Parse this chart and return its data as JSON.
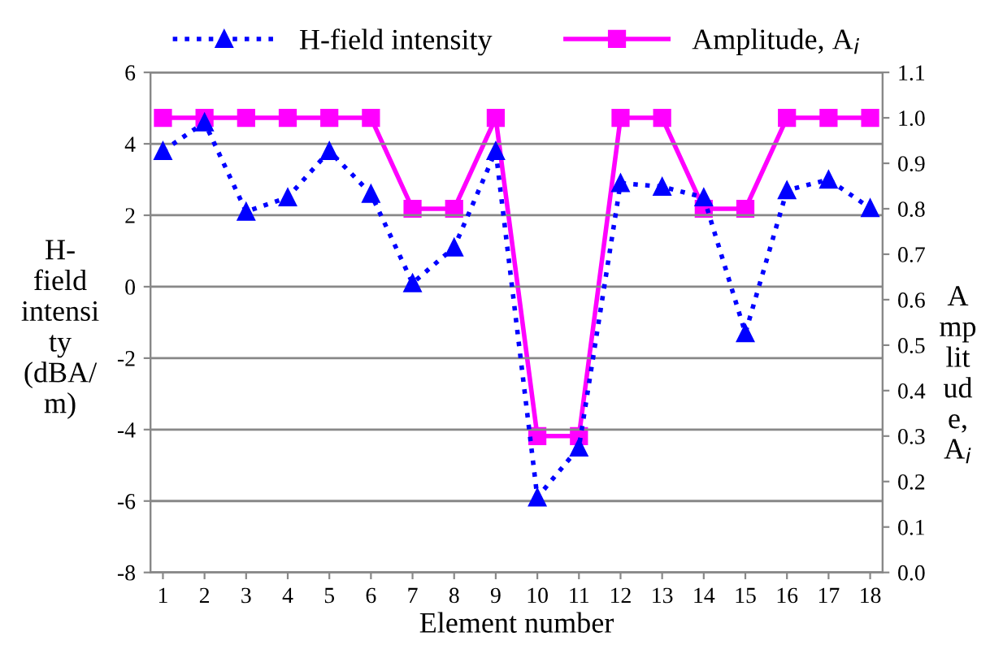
{
  "chart_data": {
    "type": "line",
    "xlabel": "Element number",
    "ylabel": "H-\nfield\nintensi\nty\n(dBA/\nm)",
    "y2label": "A\nmp\nlit\nud\ne,\nA$_{i}$",
    "categories": [
      "1",
      "2",
      "3",
      "4",
      "5",
      "6",
      "7",
      "8",
      "9",
      "10",
      "11",
      "12",
      "13",
      "14",
      "15",
      "16",
      "17",
      "18"
    ],
    "series": [
      {
        "name": "H-field intensity",
        "color": "#0000ff",
        "marker": "triangle",
        "line_style": "dotted",
        "values": [
          3.8,
          4.6,
          2.1,
          2.5,
          3.8,
          2.6,
          0.1,
          1.1,
          3.8,
          -5.9,
          -4.5,
          2.9,
          2.8,
          2.5,
          -1.3,
          2.7,
          3.0,
          2.2
        ]
      },
      {
        "name": "Amplitude, A$_{i}$",
        "color": "#ff00ff",
        "marker": "square",
        "line_style": "solid",
        "axis": "y2",
        "values": [
          1.0,
          1.0,
          1.0,
          1.0,
          1.0,
          1.0,
          0.8,
          0.8,
          1.0,
          0.3,
          0.3,
          1.0,
          1.0,
          0.8,
          0.8,
          1.0,
          1.0,
          1.0
        ]
      }
    ],
    "ylim": [
      -8,
      6
    ],
    "yticks": [
      -8,
      -6,
      -4,
      -2,
      0,
      2,
      4,
      6
    ],
    "y2lim": [
      0.0,
      1.1
    ],
    "y2ticks": [
      {
        "value": 0.0,
        "label": "0.0"
      },
      {
        "value": 0.1,
        "label": "0.1"
      },
      {
        "value": 0.2,
        "label": "0.2"
      },
      {
        "value": 0.3,
        "label": "0.3"
      },
      {
        "value": 0.4,
        "label": "0.4"
      },
      {
        "value": 0.5,
        "label": "0.5"
      },
      {
        "value": 0.6,
        "label": "0.6"
      },
      {
        "value": 0.7,
        "label": "0.7"
      },
      {
        "value": 0.8,
        "label": "0.8"
      },
      {
        "value": 0.9,
        "label": "0.9"
      },
      {
        "value": 1.0,
        "label": "1.0"
      },
      {
        "value": 1.1,
        "label": "1.1"
      }
    ],
    "grid": "y",
    "legend": "top"
  }
}
